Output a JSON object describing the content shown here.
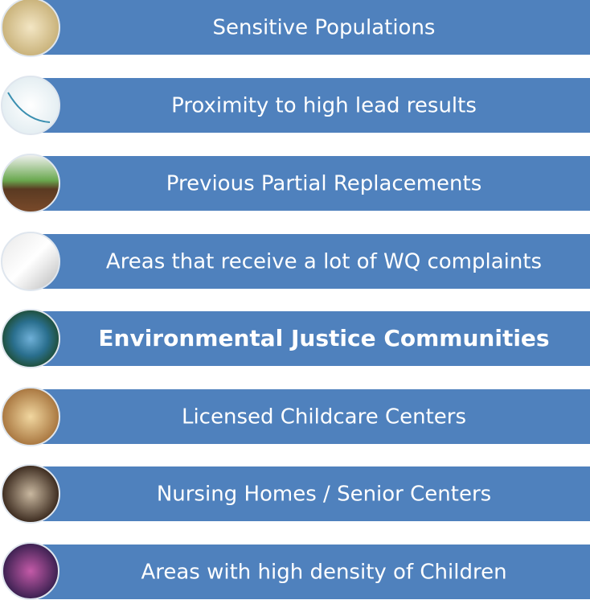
{
  "items": [
    {
      "label": "Sensitive Populations"
    },
    {
      "label": "Proximity to high lead results"
    },
    {
      "label": "Previous Partial Replacements"
    },
    {
      "label": "Areas that receive a lot of WQ complaints"
    },
    {
      "label": "Environmental Justice Communities"
    },
    {
      "label": "Licensed Childcare Centers"
    },
    {
      "label": "Nursing Homes / Senior Centers"
    },
    {
      "label": "Areas with high density of Children"
    }
  ]
}
